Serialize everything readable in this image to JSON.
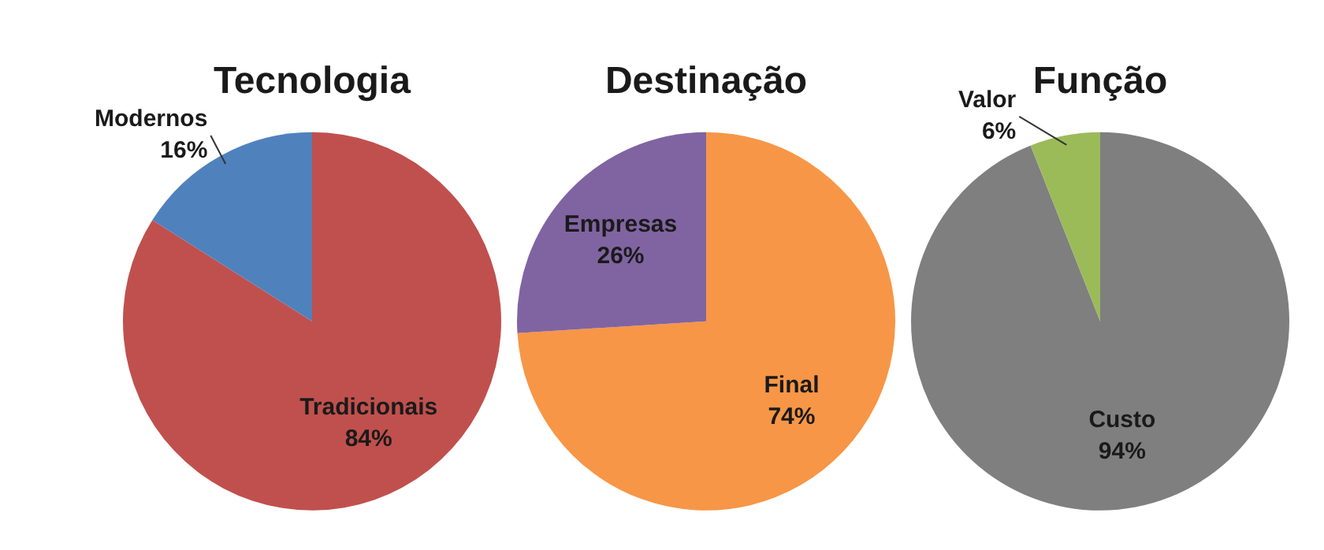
{
  "chart_data": [
    {
      "type": "pie",
      "title": "Tecnologia",
      "categories": [
        "Tradicionais",
        "Modernos"
      ],
      "values": [
        84,
        16
      ],
      "colors": [
        "#c0504d",
        "#4f81bd"
      ],
      "value_labels": [
        "84%",
        "16%"
      ],
      "legend": false
    },
    {
      "type": "pie",
      "title": "Destinação",
      "categories": [
        "Final",
        "Empresas"
      ],
      "values": [
        74,
        26
      ],
      "colors": [
        "#f79646",
        "#8064a2"
      ],
      "value_labels": [
        "74%",
        "26%"
      ],
      "legend": false
    },
    {
      "type": "pie",
      "title": "Função",
      "categories": [
        "Custo",
        "Valor"
      ],
      "values": [
        94,
        6
      ],
      "colors": [
        "#7f7f7f",
        "#9bbb59"
      ],
      "value_labels": [
        "94%",
        "6%"
      ],
      "legend": false
    }
  ]
}
